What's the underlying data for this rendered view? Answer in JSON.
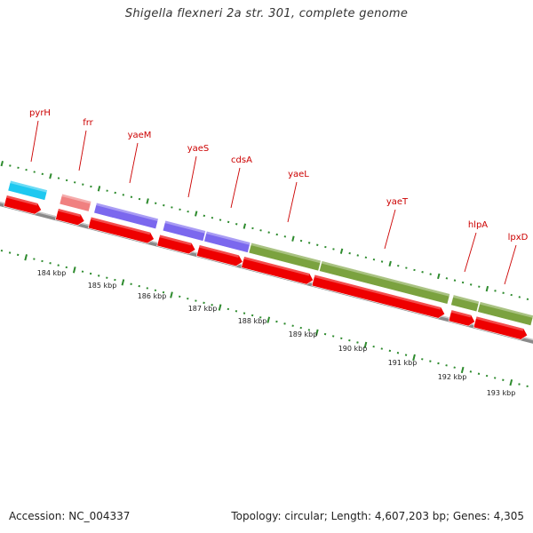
{
  "title": "Shigella flexneri 2a str. 301, complete genome",
  "genes": [
    {
      "name": "pyrH",
      "color": "#1ec8f0"
    },
    {
      "name": "frr",
      "color": "#f08080"
    },
    {
      "name": "yaeM",
      "color": "#7b68ee"
    },
    {
      "name": "yaeS",
      "color": "#7b68ee"
    },
    {
      "name": "cdsA",
      "color": "#7b68ee"
    },
    {
      "name": "yaeL",
      "color": "#7ba23f"
    },
    {
      "name": "yaeT",
      "color": "#7ba23f"
    },
    {
      "name": "hlpA",
      "color": "#7ba23f"
    },
    {
      "name": "lpxD",
      "color": "#7ba23f"
    }
  ],
  "scale_labels": [
    "184 kbp",
    "185 kbp",
    "186 kbp",
    "187 kbp",
    "188 kbp",
    "189 kbp",
    "190 kbp",
    "191 kbp",
    "192 kbp",
    "193 kbp"
  ],
  "colors": {
    "backbone": "#8a8a8a",
    "cds_arrow": "#ee0000",
    "tick": "#2e8b2e",
    "label": "#cc0000"
  },
  "footer": {
    "accession": "Accession: NC_004337",
    "summary": "Topology: circular; Length: 4,607,203 bp; Genes: 4,305"
  }
}
